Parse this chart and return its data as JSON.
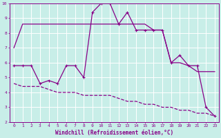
{
  "xlabel": "Windchill (Refroidissement éolien,°C)",
  "background_color": "#c8eee8",
  "grid_color": "#ffffff",
  "line_color": "#880088",
  "xlim": [
    -0.5,
    23.5
  ],
  "ylim": [
    2,
    10
  ],
  "yticks": [
    2,
    3,
    4,
    5,
    6,
    7,
    8,
    9,
    10
  ],
  "xticks": [
    0,
    1,
    2,
    3,
    4,
    5,
    6,
    7,
    8,
    9,
    10,
    11,
    12,
    13,
    14,
    15,
    16,
    17,
    18,
    19,
    20,
    21,
    22,
    23
  ],
  "series1_x": [
    0,
    1,
    2,
    3,
    4,
    5,
    6,
    7,
    8,
    9,
    10,
    11,
    12,
    13,
    14,
    15,
    16,
    17,
    18,
    19,
    20,
    21,
    22,
    23
  ],
  "series1_y": [
    7.0,
    8.6,
    8.6,
    8.6,
    8.6,
    8.6,
    8.6,
    8.6,
    8.6,
    8.6,
    8.6,
    8.6,
    8.6,
    8.6,
    8.6,
    8.6,
    8.2,
    8.2,
    6.0,
    6.0,
    5.8,
    5.4,
    5.4,
    5.4
  ],
  "series2_x": [
    0,
    1,
    2,
    3,
    4,
    5,
    6,
    7,
    8,
    9,
    10,
    11,
    12,
    13,
    14,
    15,
    16,
    17,
    18,
    19,
    20,
    21,
    22,
    23
  ],
  "series2_y": [
    5.8,
    5.8,
    5.8,
    4.6,
    4.8,
    4.6,
    5.8,
    5.8,
    5.0,
    9.4,
    10.0,
    10.0,
    8.6,
    9.4,
    8.2,
    8.2,
    8.2,
    8.2,
    6.0,
    6.5,
    5.8,
    5.8,
    3.0,
    2.4
  ],
  "series3_x": [
    0,
    1,
    2,
    3,
    4,
    5,
    6,
    7,
    8,
    9,
    10,
    11,
    12,
    13,
    14,
    15,
    16,
    17,
    18,
    19,
    20,
    21,
    22,
    23
  ],
  "series3_y": [
    4.6,
    4.4,
    4.4,
    4.4,
    4.2,
    4.0,
    4.0,
    4.0,
    3.8,
    3.8,
    3.8,
    3.8,
    3.6,
    3.4,
    3.4,
    3.2,
    3.2,
    3.0,
    3.0,
    2.8,
    2.8,
    2.6,
    2.6,
    2.4
  ]
}
